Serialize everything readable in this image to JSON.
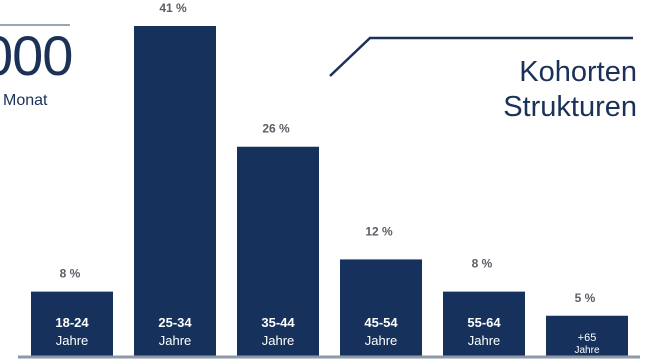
{
  "header": {
    "big_number": "000",
    "per_month": "Monat",
    "heading_line1": "Kohorten",
    "heading_line2": "Strukturen"
  },
  "colors": {
    "bar": "#16325c",
    "label": "#5a5f66",
    "heading": "#1b3157",
    "accent_line": "#1b3157"
  },
  "chart_data": {
    "type": "bar",
    "categories": [
      "18-24",
      "25-34",
      "35-44",
      "45-54",
      "55-64",
      "+65"
    ],
    "sublabel": "Jahre",
    "values": [
      8,
      41,
      26,
      12,
      8,
      5
    ],
    "value_labels": [
      "8 %",
      "41 %",
      "26 %",
      "12 %",
      "8 %",
      "5 %"
    ],
    "unit": "%",
    "ylim": [
      0,
      41
    ]
  }
}
